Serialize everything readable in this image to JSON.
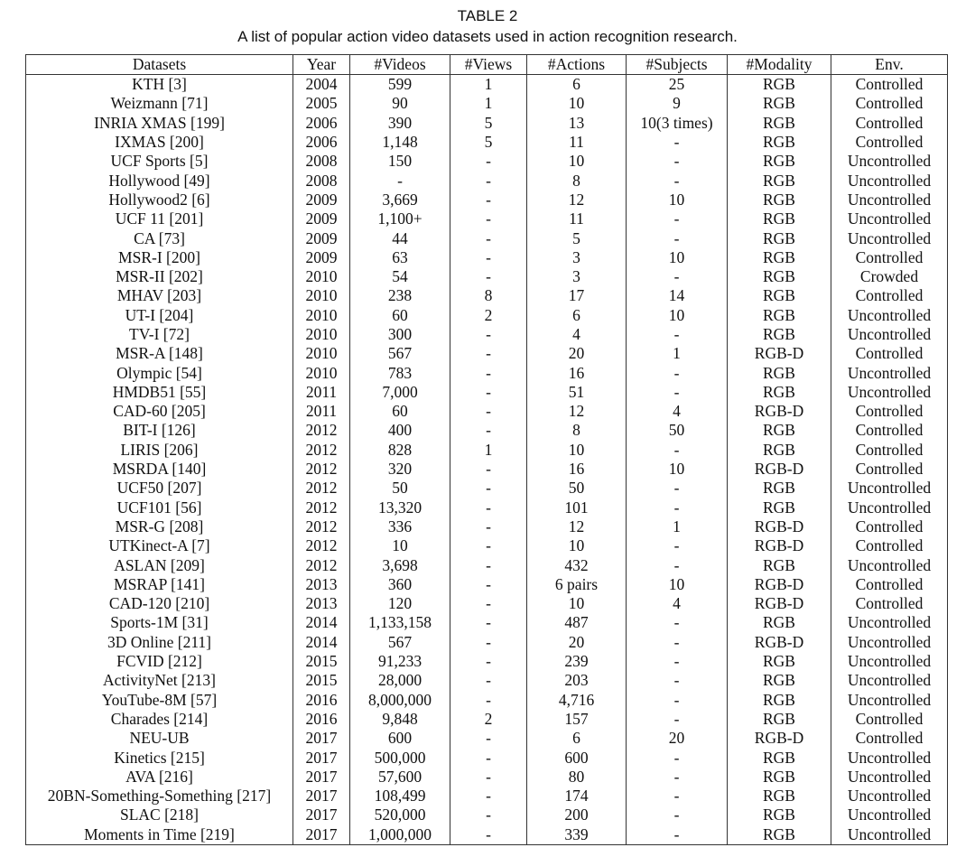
{
  "title": "TABLE 2",
  "caption": "A list of popular action video datasets used in action recognition research.",
  "table": {
    "header": [
      "Datasets",
      "Year",
      "#Videos",
      "#Views",
      "#Actions",
      "#Subjects",
      "#Modality",
      "Env."
    ],
    "rows": [
      [
        "KTH [3]",
        "2004",
        "599",
        "1",
        "6",
        "25",
        "RGB",
        "Controlled"
      ],
      [
        "Weizmann [71]",
        "2005",
        "90",
        "1",
        "10",
        "9",
        "RGB",
        "Controlled"
      ],
      [
        "INRIA XMAS [199]",
        "2006",
        "390",
        "5",
        "13",
        "10(3 times)",
        "RGB",
        "Controlled"
      ],
      [
        "IXMAS [200]",
        "2006",
        "1,148",
        "5",
        "11",
        "-",
        "RGB",
        "Controlled"
      ],
      [
        "UCF Sports [5]",
        "2008",
        "150",
        "-",
        "10",
        "-",
        "RGB",
        "Uncontrolled"
      ],
      [
        "Hollywood [49]",
        "2008",
        "-",
        "-",
        "8",
        "-",
        "RGB",
        "Uncontrolled"
      ],
      [
        "Hollywood2 [6]",
        "2009",
        "3,669",
        "-",
        "12",
        "10",
        "RGB",
        "Uncontrolled"
      ],
      [
        "UCF 11 [201]",
        "2009",
        "1,100+",
        "-",
        "11",
        "-",
        "RGB",
        "Uncontrolled"
      ],
      [
        "CA [73]",
        "2009",
        "44",
        "-",
        "5",
        "-",
        "RGB",
        "Uncontrolled"
      ],
      [
        "MSR-I [200]",
        "2009",
        "63",
        "-",
        "3",
        "10",
        "RGB",
        "Controlled"
      ],
      [
        "MSR-II [202]",
        "2010",
        "54",
        "-",
        "3",
        "-",
        "RGB",
        "Crowded"
      ],
      [
        "MHAV [203]",
        "2010",
        "238",
        "8",
        "17",
        "14",
        "RGB",
        "Controlled"
      ],
      [
        "UT-I [204]",
        "2010",
        "60",
        "2",
        "6",
        "10",
        "RGB",
        "Uncontrolled"
      ],
      [
        "TV-I [72]",
        "2010",
        "300",
        "-",
        "4",
        "-",
        "RGB",
        "Uncontrolled"
      ],
      [
        "MSR-A [148]",
        "2010",
        "567",
        "-",
        "20",
        "1",
        "RGB-D",
        "Controlled"
      ],
      [
        "Olympic [54]",
        "2010",
        "783",
        "-",
        "16",
        "-",
        "RGB",
        "Uncontrolled"
      ],
      [
        "HMDB51 [55]",
        "2011",
        "7,000",
        "-",
        "51",
        "-",
        "RGB",
        "Uncontrolled"
      ],
      [
        "CAD-60 [205]",
        "2011",
        "60",
        "-",
        "12",
        "4",
        "RGB-D",
        "Controlled"
      ],
      [
        "BIT-I [126]",
        "2012",
        "400",
        "-",
        "8",
        "50",
        "RGB",
        "Controlled"
      ],
      [
        "LIRIS [206]",
        "2012",
        "828",
        "1",
        "10",
        "-",
        "RGB",
        "Controlled"
      ],
      [
        "MSRDA [140]",
        "2012",
        "320",
        "-",
        "16",
        "10",
        "RGB-D",
        "Controlled"
      ],
      [
        "UCF50 [207]",
        "2012",
        "50",
        "-",
        "50",
        "-",
        "RGB",
        "Uncontrolled"
      ],
      [
        "UCF101 [56]",
        "2012",
        "13,320",
        "-",
        "101",
        "-",
        "RGB",
        "Uncontrolled"
      ],
      [
        "MSR-G [208]",
        "2012",
        "336",
        "-",
        "12",
        "1",
        "RGB-D",
        "Controlled"
      ],
      [
        "UTKinect-A [7]",
        "2012",
        "10",
        "-",
        "10",
        "-",
        "RGB-D",
        "Controlled"
      ],
      [
        "ASLAN [209]",
        "2012",
        "3,698",
        "-",
        "432",
        "-",
        "RGB",
        "Uncontrolled"
      ],
      [
        "MSRAP [141]",
        "2013",
        "360",
        "-",
        "6 pairs",
        "10",
        "RGB-D",
        "Controlled"
      ],
      [
        "CAD-120 [210]",
        "2013",
        "120",
        "-",
        "10",
        "4",
        "RGB-D",
        "Controlled"
      ],
      [
        "Sports-1M [31]",
        "2014",
        "1,133,158",
        "-",
        "487",
        "-",
        "RGB",
        "Uncontrolled"
      ],
      [
        "3D Online [211]",
        "2014",
        "567",
        "-",
        "20",
        "-",
        "RGB-D",
        "Uncontrolled"
      ],
      [
        "FCVID [212]",
        "2015",
        "91,233",
        "-",
        "239",
        "-",
        "RGB",
        "Uncontrolled"
      ],
      [
        "ActivityNet [213]",
        "2015",
        "28,000",
        "-",
        "203",
        "-",
        "RGB",
        "Uncontrolled"
      ],
      [
        "YouTube-8M [57]",
        "2016",
        "8,000,000",
        "-",
        "4,716",
        "-",
        "RGB",
        "Uncontrolled"
      ],
      [
        "Charades [214]",
        "2016",
        "9,848",
        "2",
        "157",
        "-",
        "RGB",
        "Controlled"
      ],
      [
        "NEU-UB",
        "2017",
        "600",
        "-",
        "6",
        "20",
        "RGB-D",
        "Controlled"
      ],
      [
        "Kinetics [215]",
        "2017",
        "500,000",
        "-",
        "600",
        "-",
        "RGB",
        "Uncontrolled"
      ],
      [
        "AVA [216]",
        "2017",
        "57,600",
        "-",
        "80",
        "-",
        "RGB",
        "Uncontrolled"
      ],
      [
        "20BN-Something-Something [217]",
        "2017",
        "108,499",
        "-",
        "174",
        "-",
        "RGB",
        "Uncontrolled"
      ],
      [
        "SLAC [218]",
        "2017",
        "520,000",
        "-",
        "200",
        "-",
        "RGB",
        "Uncontrolled"
      ],
      [
        "Moments in Time [219]",
        "2017",
        "1,000,000",
        "-",
        "339",
        "-",
        "RGB",
        "Uncontrolled"
      ]
    ]
  }
}
